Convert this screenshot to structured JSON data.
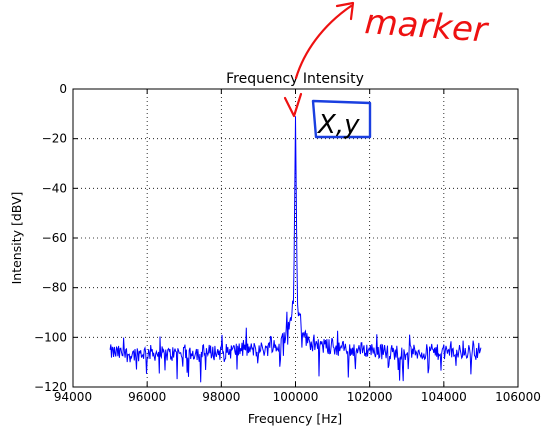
{
  "chart_data": {
    "type": "line",
    "title": "Frequency Intensity",
    "xlabel": "Frequency [Hz]",
    "ylabel": "Intensity [dBV]",
    "xlim": [
      94000,
      106000
    ],
    "ylim": [
      -120,
      0
    ],
    "xticks": [
      "94000",
      "96000",
      "98000",
      "100000",
      "102000",
      "104000",
      "106000"
    ],
    "yticks": [
      "0",
      "−20",
      "−40",
      "−60",
      "−80",
      "−100",
      "−120"
    ],
    "grid": true,
    "series": [
      {
        "color": "#0000ff",
        "description_points": [
          [
            95000,
            -106
          ],
          [
            95500,
            -107
          ],
          [
            96000,
            -106
          ],
          [
            96500,
            -107
          ],
          [
            97000,
            -106
          ],
          [
            97500,
            -106
          ],
          [
            98000,
            -106
          ],
          [
            98500,
            -105
          ],
          [
            99000,
            -105
          ],
          [
            99500,
            -104
          ],
          [
            99700,
            -100
          ],
          [
            99850,
            -93
          ],
          [
            99950,
            -86
          ],
          [
            100000,
            -11
          ],
          [
            100050,
            -86
          ],
          [
            100150,
            -95
          ],
          [
            100300,
            -101
          ],
          [
            100500,
            -103
          ],
          [
            101000,
            -104
          ],
          [
            101500,
            -105
          ],
          [
            102000,
            -105
          ],
          [
            102500,
            -106
          ],
          [
            103000,
            -106
          ],
          [
            103500,
            -106
          ],
          [
            104000,
            -106
          ],
          [
            104500,
            -106
          ],
          [
            105000,
            -105
          ]
        ]
      }
    ],
    "peak": {
      "x": 100000,
      "y": -11
    }
  },
  "annotations": {
    "marker_text": "marker",
    "box_text": "X,y",
    "color_marker": "#ee1111",
    "color_box": "#1a3fe0"
  }
}
